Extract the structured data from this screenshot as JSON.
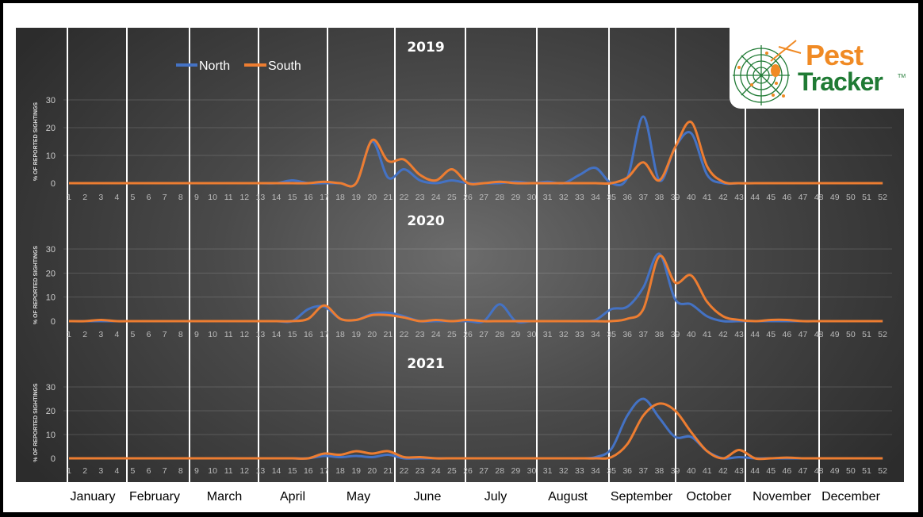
{
  "chart_data": [
    {
      "type": "line",
      "title": "2019",
      "ylabel": "% OF REPORTED SIGHTINGS",
      "xlabel": "",
      "ylim": [
        0,
        30
      ],
      "yticks": [
        0,
        10,
        20,
        30
      ],
      "x": "weeks 1-52",
      "series": [
        {
          "name": "North",
          "color": "#4472c4",
          "values": {
            "15": 1,
            "20": 15,
            "21": 2,
            "22": 5,
            "23": 1,
            "25": 1,
            "29": 0.5,
            "31": 0.5,
            "33": 3,
            "34": 5.5,
            "36": 2,
            "37": 24,
            "38": 1,
            "39": 13,
            "40": 18,
            "41": 3
          }
        },
        {
          "name": "South",
          "color": "#ed7d31",
          "values": {
            "17": 0.5,
            "20": 15.5,
            "21": 8,
            "22": 8.5,
            "23": 3,
            "24": 1,
            "25": 5,
            "28": 0.5,
            "36": 2,
            "37": 7.5,
            "38": 1,
            "39": 13,
            "40": 22,
            "41": 6,
            "42": 0.5
          }
        }
      ]
    },
    {
      "type": "line",
      "title": "2020",
      "ylabel": "% OF REPORTED SIGHTINGS",
      "xlabel": "",
      "ylim": [
        0,
        30
      ],
      "yticks": [
        0,
        10,
        20,
        30
      ],
      "x": "weeks 1-52",
      "series": [
        {
          "name": "North",
          "color": "#4472c4",
          "values": {
            "16": 5,
            "17": 6,
            "18": 1,
            "19": 0.5,
            "20": 3,
            "21": 3.5,
            "22": 2,
            "28": 7,
            "34": 0.5,
            "35": 5,
            "36": 6,
            "37": 14,
            "38": 28,
            "39": 9,
            "40": 7,
            "41": 2
          }
        },
        {
          "name": "South",
          "color": "#ed7d31",
          "values": {
            "3": 0.5,
            "16": 1,
            "17": 6.5,
            "18": 1,
            "19": 0.5,
            "20": 2.5,
            "21": 2.5,
            "22": 1.5,
            "24": 0.5,
            "26": 0.5,
            "36": 1,
            "37": 5,
            "38": 27,
            "39": 16,
            "40": 19,
            "41": 8,
            "42": 2,
            "43": 0.5,
            "45": 0.5,
            "46": 0.5
          }
        }
      ]
    },
    {
      "type": "line",
      "title": "2021",
      "ylabel": "% OF REPORTED SIGHTINGS",
      "xlabel": "",
      "ylim": [
        0,
        30
      ],
      "yticks": [
        0,
        10,
        20,
        30
      ],
      "x": "weeks 1-52",
      "series": [
        {
          "name": "North",
          "color": "#4472c4",
          "values": {
            "17": 1,
            "18": 0.5,
            "19": 1,
            "20": 0.5,
            "21": 1.5,
            "34": 0.5,
            "35": 4,
            "36": 18,
            "37": 25,
            "38": 17,
            "39": 9,
            "40": 9,
            "41": 3,
            "43": 0.5
          }
        },
        {
          "name": "South",
          "color": "#ed7d31",
          "values": {
            "17": 2,
            "18": 1.5,
            "19": 3,
            "20": 2,
            "21": 3,
            "22": 0.5,
            "23": 0.5,
            "35": 0.5,
            "36": 6,
            "37": 18,
            "38": 23,
            "39": 20,
            "40": 11,
            "41": 3,
            "43": 3.5,
            "46": 0.3
          }
        }
      ]
    }
  ],
  "legend": {
    "north": "North",
    "south": "South"
  },
  "months": [
    "January",
    "February",
    "March",
    "April",
    "May",
    "June",
    "July",
    "August",
    "September",
    "October",
    "November",
    "December"
  ],
  "month_boundaries_after_week": [
    0,
    4,
    8,
    12,
    17,
    21,
    25,
    30,
    34,
    38,
    42,
    47
  ],
  "logo": {
    "line1": "Pest",
    "line2": "Tracker",
    "tm": "TM"
  }
}
